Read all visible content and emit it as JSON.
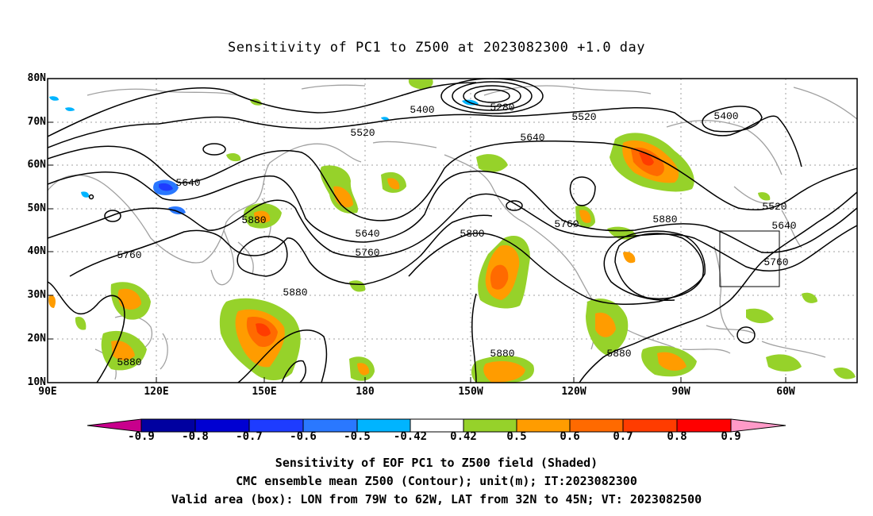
{
  "title": "Sensitivity of PC1 to Z500 at 2023082300 +1.0 day",
  "lat_labels": [
    "80N",
    "70N",
    "60N",
    "50N",
    "40N",
    "30N",
    "20N",
    "10N"
  ],
  "lon_labels": [
    "90E",
    "120E",
    "150E",
    "180",
    "150W",
    "120W",
    "90W",
    "60W"
  ],
  "contour_labels": [
    "5400",
    "5280",
    "5520",
    "5400",
    "5520",
    "5640",
    "5640",
    "5880",
    "5640",
    "5760",
    "5880",
    "5760",
    "5880",
    "5520",
    "5640",
    "5760",
    "5760",
    "5880",
    "5880",
    "5880"
  ],
  "colorbar": {
    "labels": [
      "-0.9",
      "-0.8",
      "-0.7",
      "-0.6",
      "-0.5",
      "-0.42",
      "0.42",
      "0.5",
      "0.6",
      "0.7",
      "0.8",
      "0.9"
    ],
    "colors": [
      "#c8008c",
      "#0000a0",
      "#0000d2",
      "#1e3cff",
      "#2a78ff",
      "#00b4ff",
      "#ffffff",
      "#96d22a",
      "#ff9c00",
      "#ff6a00",
      "#ff3c00",
      "#ff0000",
      "#ff9ac8"
    ]
  },
  "footer": {
    "line1": "Sensitivity of EOF PC1 to Z500 field (Shaded)",
    "line2": "CMC ensemble mean Z500 (Contour); unit(m); IT:2023082300",
    "line3": "Valid area (box): LON from 79W to 62W, LAT from 32N to 45N; VT: 2023082500"
  },
  "valid_box": {
    "lon_min": -79,
    "lon_max": -62,
    "lat_min": 32,
    "lat_max": 45
  },
  "colors": {
    "contour": "#000000",
    "coast": "#a0a0a0",
    "grid": "#a0a0a0"
  }
}
